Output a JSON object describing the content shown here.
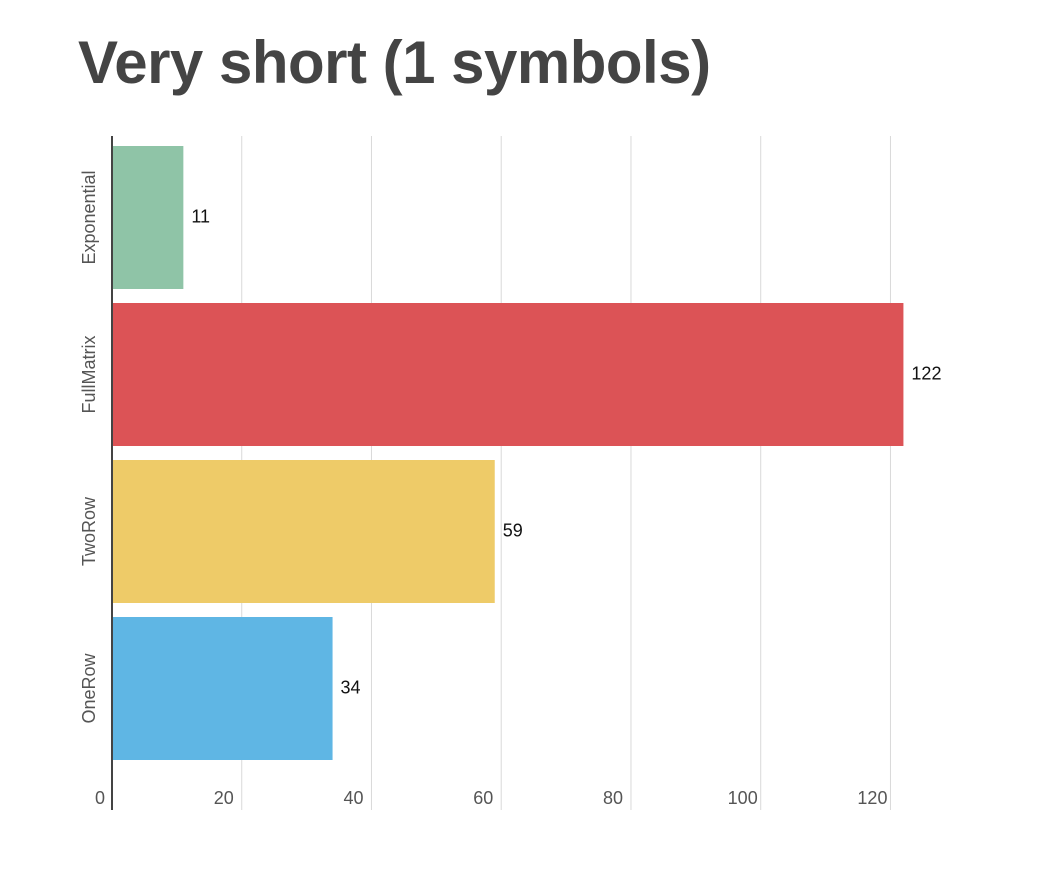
{
  "chart_data": {
    "type": "bar",
    "orientation": "horizontal",
    "title": "Very short (1 symbols)",
    "xlabel": "",
    "ylabel": "",
    "categories": [
      "Exponential",
      "FullMatrix",
      "TwoRow",
      "OneRow"
    ],
    "values": [
      11,
      122,
      59,
      34
    ],
    "data_labels": [
      "11",
      "122",
      "59",
      "34"
    ],
    "colors": [
      "#8fc4a7",
      "#dc5356",
      "#eecb68",
      "#5fb6e4"
    ],
    "xlim": [
      0,
      124
    ],
    "x_ticks": [
      0,
      20,
      40,
      60,
      80,
      100,
      120
    ],
    "x_tick_labels": [
      "0",
      "20",
      "40",
      "60",
      "80",
      "100",
      "120"
    ],
    "grid": true,
    "legend": "none"
  },
  "colors": {
    "title": "#444444",
    "axis": "#444444",
    "grid": "#d9d9d9",
    "tick_text": "#555555",
    "data_label_text": "#111111"
  }
}
